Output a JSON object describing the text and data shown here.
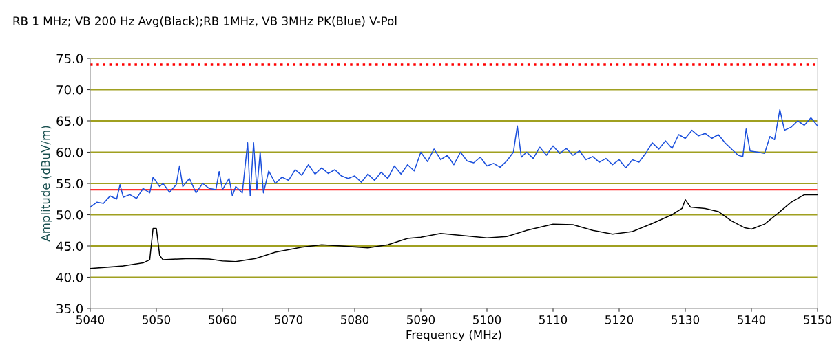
{
  "chart_data": {
    "type": "line",
    "title": "RB 1 MHz; VB 200 Hz Avg(Black);RB 1MHz, VB 3MHz PK(Blue) V-Pol",
    "xlabel": "Frequency (MHz)",
    "ylabel": "Amplitude (dBuV/m)",
    "xlim": [
      5040,
      5150
    ],
    "ylim": [
      35,
      75
    ],
    "xticks": [
      5040,
      5050,
      5060,
      5070,
      5080,
      5090,
      5100,
      5110,
      5120,
      5130,
      5140,
      5150
    ],
    "yticks": [
      {
        "value": 35,
        "label": "35.0"
      },
      {
        "value": 40,
        "label": "40.0"
      },
      {
        "value": 45,
        "label": "45.0"
      },
      {
        "value": 50,
        "label": "50.0"
      },
      {
        "value": 55,
        "label": "55.0"
      },
      {
        "value": 60,
        "label": "60.0"
      },
      {
        "value": 65,
        "label": "65.0"
      },
      {
        "value": 70,
        "label": "70.0"
      },
      {
        "value": 75,
        "label": "75.0"
      }
    ],
    "grid": "y",
    "marker": "none",
    "legend": false,
    "ref_lines": [
      {
        "axis": "y",
        "value": 74,
        "color": "#ff0000",
        "line_style": "dotted"
      },
      {
        "axis": "y",
        "value": 54,
        "color": "#ff3030",
        "line_style": "solid"
      }
    ],
    "series": [
      {
        "color": "#1a4fdc",
        "x": [
          5040,
          5041,
          5042,
          5043,
          5044,
          5044.5,
          5045,
          5046,
          5047,
          5048,
          5049,
          5049.5,
          5050.5,
          5051,
          5052,
          5053,
          5053.5,
          5054,
          5055,
          5056,
          5057,
          5058,
          5059,
          5059.5,
          5060,
          5061,
          5061.5,
          5062,
          5063,
          5063.8,
          5064.2,
          5064.7,
          5065.2,
          5065.7,
          5066.2,
          5067,
          5068,
          5069,
          5070,
          5071,
          5072,
          5073,
          5074,
          5075,
          5076,
          5077,
          5078,
          5079,
          5080,
          5081,
          5082,
          5083,
          5084,
          5085,
          5086,
          5087,
          5088,
          5089,
          5090,
          5091,
          5092,
          5093,
          5094,
          5095,
          5096,
          5097,
          5098,
          5099,
          5100,
          5101,
          5102,
          5103,
          5104,
          5104.6,
          5105.2,
          5106,
          5107,
          5108,
          5109,
          5110,
          5111,
          5112,
          5113,
          5114,
          5115,
          5116,
          5117,
          5118,
          5119,
          5120,
          5121,
          5122,
          5123,
          5124,
          5125,
          5126,
          5127,
          5128,
          5129,
          5130,
          5131,
          5132,
          5133,
          5134,
          5135,
          5136,
          5137,
          5138,
          5138.7,
          5139.2,
          5139.8,
          5141,
          5142,
          5142.8,
          5143.5,
          5144.3,
          5145,
          5146,
          5147,
          5148,
          5149,
          5150
        ],
        "values": [
          51.2,
          52.0,
          51.8,
          53.0,
          52.5,
          54.8,
          52.8,
          53.2,
          52.6,
          54.2,
          53.5,
          56.0,
          54.5,
          55.0,
          53.6,
          54.8,
          57.8,
          54.5,
          55.8,
          53.5,
          55.0,
          54.2,
          54.0,
          56.9,
          54.0,
          55.8,
          53.0,
          54.5,
          53.5,
          61.5,
          53.0,
          61.5,
          54.0,
          60.0,
          53.5,
          57.0,
          55.0,
          56.0,
          55.5,
          57.2,
          56.3,
          58.0,
          56.5,
          57.5,
          56.6,
          57.2,
          56.2,
          55.8,
          56.2,
          55.2,
          56.5,
          55.5,
          56.8,
          55.8,
          57.8,
          56.5,
          58.0,
          57.0,
          60.0,
          58.5,
          60.5,
          58.8,
          59.5,
          58.0,
          60.0,
          58.6,
          58.3,
          59.2,
          57.8,
          58.2,
          57.6,
          58.6,
          60.0,
          64.2,
          59.2,
          60.0,
          59.0,
          60.8,
          59.5,
          61.0,
          59.8,
          60.6,
          59.5,
          60.2,
          58.8,
          59.3,
          58.4,
          59.0,
          58.0,
          58.8,
          57.5,
          58.8,
          58.4,
          59.8,
          61.5,
          60.5,
          61.8,
          60.6,
          62.8,
          62.2,
          63.5,
          62.6,
          63.0,
          62.2,
          62.8,
          61.5,
          60.5,
          59.5,
          59.3,
          63.7,
          60.2,
          60.0,
          59.8,
          62.5,
          62.0,
          66.8,
          63.5,
          64.0,
          65.0,
          64.3,
          65.5,
          64.2
        ]
      },
      {
        "color": "#000000",
        "x": [
          5040,
          5045,
          5048,
          5049,
          5049.5,
          5050,
          5050.5,
          5051,
          5055,
          5058,
          5060,
          5062,
          5065,
          5068,
          5072,
          5075,
          5078,
          5082,
          5085,
          5088,
          5090,
          5093,
          5096,
          5100,
          5103,
          5106,
          5110,
          5113,
          5116,
          5119,
          5122,
          5125,
          5128,
          5129.5,
          5130,
          5130.8,
          5133,
          5135,
          5137,
          5139,
          5140,
          5142,
          5144,
          5146,
          5148,
          5150
        ],
        "values": [
          41.4,
          41.8,
          42.3,
          42.8,
          47.8,
          47.8,
          43.5,
          42.8,
          43.0,
          42.9,
          42.6,
          42.5,
          43.0,
          44.0,
          44.8,
          45.2,
          45.0,
          44.7,
          45.2,
          46.2,
          46.4,
          47.0,
          46.7,
          46.3,
          46.5,
          47.5,
          48.5,
          48.4,
          47.5,
          46.9,
          47.3,
          48.6,
          50.0,
          51.0,
          52.4,
          51.2,
          51.0,
          50.5,
          49.0,
          47.9,
          47.7,
          48.5,
          50.2,
          52.0,
          53.2,
          53.2
        ]
      }
    ]
  }
}
